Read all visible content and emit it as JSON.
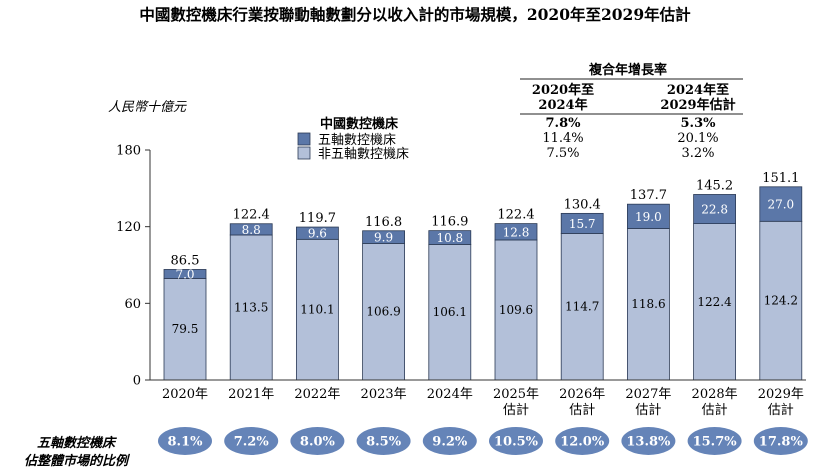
{
  "chart_data": {
    "type": "bar",
    "stacked": true,
    "title": "中國數控機床行業按聯動軸數劃分以收入計的市場規模，2020年至2029年估計",
    "ylabel": "人民幣十億元",
    "ylim": [
      0,
      180
    ],
    "yticks": [
      "0",
      "60",
      "120",
      "180"
    ],
    "categories": [
      [
        "2020年"
      ],
      [
        "2021年"
      ],
      [
        "2022年"
      ],
      [
        "2023年"
      ],
      [
        "2024年"
      ],
      [
        "2025年",
        "估計"
      ],
      [
        "2026年",
        "估計"
      ],
      [
        "2027年",
        "估計"
      ],
      [
        "2028年",
        "估計"
      ],
      [
        "2029年",
        "估計"
      ]
    ],
    "series": [
      {
        "name": "非五軸數控機床",
        "color": "#b3c0d9",
        "values": [
          79.5,
          113.5,
          110.1,
          106.9,
          106.1,
          109.6,
          114.7,
          118.6,
          122.4,
          124.2
        ]
      },
      {
        "name": "五軸數控機床",
        "color": "#5b77a8",
        "values": [
          7.0,
          8.8,
          9.6,
          9.9,
          10.8,
          12.8,
          15.7,
          19.0,
          22.8,
          27.0
        ]
      }
    ],
    "totals": [
      86.5,
      122.4,
      119.7,
      116.8,
      116.9,
      122.4,
      130.4,
      137.7,
      145.2,
      151.1
    ],
    "legend": {
      "title": "中國數控機床",
      "placement": "top-center",
      "items": [
        "五軸數控機床",
        "非五軸數控機床"
      ]
    },
    "cagr": {
      "title": "複合年增長率",
      "headers": [
        [
          "2020年至",
          "2024年"
        ],
        [
          "2024年至",
          "2029年估計"
        ]
      ],
      "rows": [
        [
          "7.8%",
          "5.3%"
        ],
        [
          "11.4%",
          "20.1%"
        ],
        [
          "7.5%",
          "3.2%"
        ]
      ]
    },
    "share_label": [
      "五軸數控機床",
      "佔整體市場的比例"
    ],
    "share_values": [
      "8.1%",
      "7.2%",
      "8.0%",
      "8.5%",
      "9.2%",
      "10.5%",
      "12.0%",
      "13.8%",
      "15.7%",
      "17.8%"
    ],
    "share_color": "#6584b8",
    "colors": {
      "axis": "#333333",
      "bar_outline": "#2b3a55",
      "text": "#111111"
    }
  }
}
